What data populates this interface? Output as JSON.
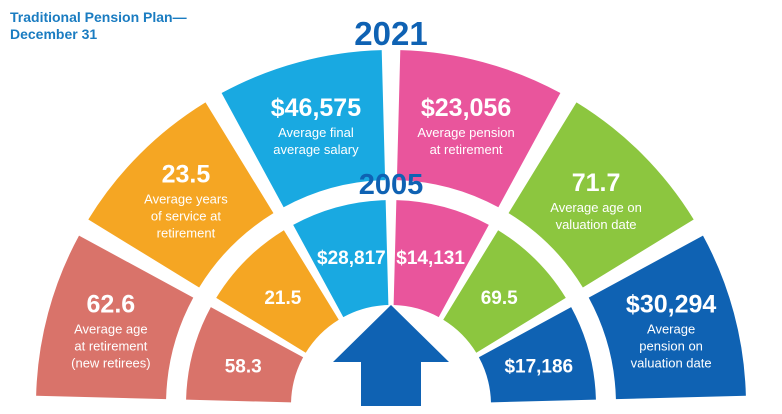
{
  "header": {
    "line1": "Traditional Pension Plan—",
    "line2": "December 31"
  },
  "chart_data": {
    "type": "radial-infographic",
    "groups": [
      {
        "label": "2021",
        "items": [
          {
            "value": "62.6",
            "lines": [
              "Average age",
              "at retirement",
              "(new retirees)"
            ],
            "color": "#d9736a"
          },
          {
            "value": "23.5",
            "lines": [
              "Average years",
              "of service at",
              "retirement"
            ],
            "color": "#f5a623"
          },
          {
            "value": "$46,575",
            "lines": [
              "Average final",
              "average salary"
            ],
            "color": "#19a9e1"
          },
          {
            "value": "$23,056",
            "lines": [
              "Average pension",
              "at retirement"
            ],
            "color": "#e9559c"
          },
          {
            "value": "71.7",
            "lines": [
              "Average age on",
              "valuation date"
            ],
            "color": "#8cc63f"
          },
          {
            "value": "$30,294",
            "lines": [
              "Average",
              "pension on",
              "valuation date"
            ],
            "color": "#0f62b3"
          }
        ]
      },
      {
        "label": "2005",
        "items": [
          {
            "value": "58.3",
            "color": "#d9736a"
          },
          {
            "value": "21.5",
            "color": "#f5a623"
          },
          {
            "value": "$28,817",
            "color": "#19a9e1"
          },
          {
            "value": "$14,131",
            "color": "#e9559c"
          },
          {
            "value": "69.5",
            "color": "#8cc63f"
          },
          {
            "value": "$17,186",
            "color": "#0f62b3"
          }
        ]
      }
    ]
  },
  "arrow": {
    "icon": "up-arrow-icon",
    "color": "#0f62b3"
  }
}
